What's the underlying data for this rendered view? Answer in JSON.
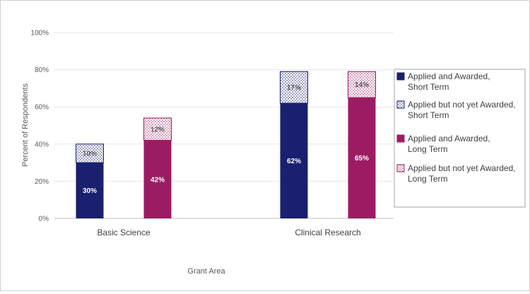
{
  "chart_data": {
    "type": "bar",
    "stacked": true,
    "categories": [
      "Basic Science",
      "Clinical Research"
    ],
    "xlabel": "Grant Area",
    "ylabel": "Percent of Respondents",
    "ylim": [
      0,
      100
    ],
    "yticks": [
      "0%",
      "20%",
      "40%",
      "60%",
      "80%",
      "100%"
    ],
    "grid": true,
    "legend_position": "right",
    "series": [
      {
        "name": "Applied and Awarded, Short Term",
        "group": "short",
        "fill": "solid",
        "color": "#1a1f6e",
        "values": [
          30,
          62
        ],
        "labels": [
          "30%",
          "62%"
        ]
      },
      {
        "name": "Applied but not yet Awarded, Short Term",
        "group": "short",
        "fill": "dotted",
        "color": "#1a1f6e",
        "values": [
          10,
          17
        ],
        "labels": [
          "10%",
          "17%"
        ]
      },
      {
        "name": "Applied and Awarded, Long Term",
        "group": "long",
        "fill": "solid",
        "color": "#9c1c63",
        "values": [
          42,
          65
        ],
        "labels": [
          "42%",
          "65%"
        ]
      },
      {
        "name": "Applied but not yet Awarded, Long Term",
        "group": "long",
        "fill": "dotted",
        "color": "#9c1c63",
        "values": [
          12,
          14
        ],
        "labels": [
          "12%",
          "14%"
        ]
      }
    ]
  }
}
